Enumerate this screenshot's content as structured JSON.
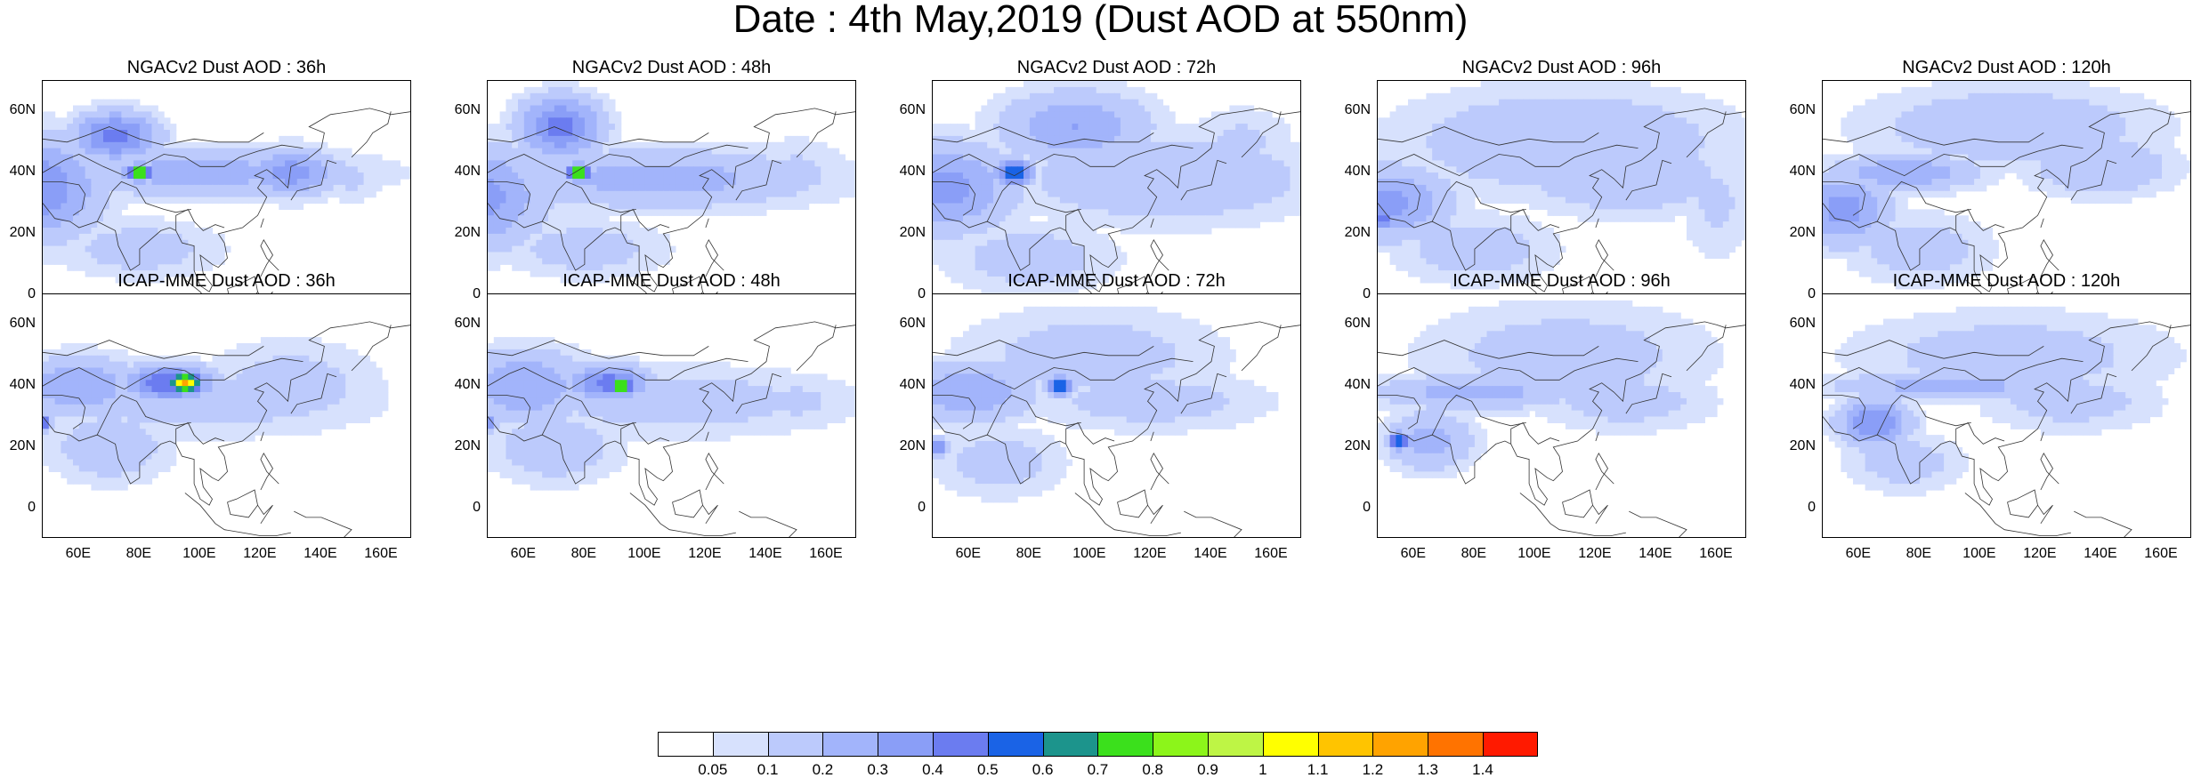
{
  "title": "Date : 4th May,2019 (Dust AOD at 550nm)",
  "x_ticks": [
    "60E",
    "80E",
    "100E",
    "120E",
    "140E",
    "160E"
  ],
  "y_ticks": [
    "60N",
    "40N",
    "20N",
    "0"
  ],
  "lon_range": [
    48,
    170
  ],
  "lat_range": [
    -10,
    70
  ],
  "panels": [
    {
      "title": "NGACv2 Dust AOD : 36h",
      "model": "NGACv2",
      "lead": "36h",
      "blobs": [
        [
          45,
          35,
          22,
          17,
          0.4
        ],
        [
          72,
          52,
          14,
          8,
          0.45
        ],
        [
          80,
          40,
          4,
          3,
          0.85
        ],
        [
          100,
          40,
          55,
          8,
          0.25
        ],
        [
          80,
          15,
          28,
          10,
          0.15
        ],
        [
          130,
          40,
          15,
          8,
          0.35
        ],
        [
          150,
          38,
          12,
          8,
          0.12
        ]
      ]
    },
    {
      "title": "NGACv2 Dust AOD : 48h",
      "model": "NGACv2",
      "lead": "48h",
      "blobs": [
        [
          45,
          32,
          22,
          17,
          0.35
        ],
        [
          72,
          55,
          14,
          10,
          0.45
        ],
        [
          78,
          40,
          4,
          3,
          0.85
        ],
        [
          105,
          38,
          55,
          10,
          0.25
        ],
        [
          80,
          15,
          28,
          10,
          0.15
        ],
        [
          150,
          40,
          18,
          12,
          0.12
        ]
      ]
    },
    {
      "title": "NGACv2 Dust AOD : 72h",
      "model": "NGACv2",
      "lead": "72h",
      "blobs": [
        [
          50,
          35,
          25,
          15,
          0.35
        ],
        [
          75,
          40,
          6,
          4,
          0.6
        ],
        [
          95,
          55,
          25,
          12,
          0.3
        ],
        [
          125,
          38,
          50,
          15,
          0.2
        ],
        [
          80,
          12,
          30,
          12,
          0.15
        ],
        [
          150,
          50,
          18,
          12,
          0.12
        ]
      ]
    },
    {
      "title": "NGACv2 Dust AOD : 96h",
      "model": "NGACv2",
      "lead": "96h",
      "blobs": [
        [
          50,
          30,
          22,
          12,
          0.35
        ],
        [
          50,
          25,
          4,
          3,
          0.5
        ],
        [
          110,
          50,
          55,
          18,
          0.2
        ],
        [
          130,
          38,
          35,
          12,
          0.2
        ],
        [
          80,
          15,
          28,
          12,
          0.15
        ],
        [
          160,
          30,
          12,
          20,
          0.12
        ]
      ]
    },
    {
      "title": "NGACv2 Dust AOD : 120h",
      "model": "NGACv2",
      "lead": "120h",
      "blobs": [
        [
          55,
          28,
          15,
          12,
          0.35
        ],
        [
          75,
          40,
          25,
          6,
          0.3
        ],
        [
          110,
          55,
          50,
          14,
          0.18
        ],
        [
          140,
          42,
          25,
          10,
          0.2
        ],
        [
          80,
          15,
          25,
          12,
          0.15
        ]
      ]
    },
    {
      "title": "ICAP-MME Dust AOD : 36h",
      "model": "ICAP-MME",
      "lead": "36h",
      "blobs": [
        [
          95,
          41,
          5,
          3,
          1.2
        ],
        [
          90,
          41,
          15,
          6,
          0.5
        ],
        [
          60,
          40,
          20,
          10,
          0.3
        ],
        [
          100,
          35,
          60,
          12,
          0.15
        ],
        [
          130,
          40,
          30,
          15,
          0.15
        ],
        [
          70,
          20,
          20,
          12,
          0.18
        ],
        [
          48,
          28,
          3,
          3,
          0.5
        ]
      ]
    },
    {
      "title": "ICAP-MME Dust AOD : 48h",
      "model": "ICAP-MME",
      "lead": "48h",
      "blobs": [
        [
          92,
          40,
          4,
          3,
          0.85
        ],
        [
          88,
          41,
          14,
          6,
          0.45
        ],
        [
          60,
          40,
          22,
          12,
          0.3
        ],
        [
          110,
          35,
          60,
          12,
          0.15
        ],
        [
          150,
          35,
          20,
          10,
          0.12
        ],
        [
          70,
          20,
          22,
          12,
          0.18
        ],
        [
          48,
          28,
          3,
          3,
          0.45
        ]
      ]
    },
    {
      "title": "ICAP-MME Dust AOD : 72h",
      "model": "ICAP-MME",
      "lead": "72h",
      "blobs": [
        [
          90,
          40,
          4,
          3,
          0.65
        ],
        [
          60,
          38,
          22,
          10,
          0.3
        ],
        [
          100,
          50,
          45,
          16,
          0.15
        ],
        [
          120,
          35,
          40,
          10,
          0.15
        ],
        [
          70,
          15,
          22,
          12,
          0.15
        ],
        [
          50,
          20,
          3,
          3,
          0.4
        ]
      ]
    },
    {
      "title": "ICAP-MME Dust AOD : 96h",
      "model": "ICAP-MME",
      "lead": "96h",
      "blobs": [
        [
          80,
          38,
          35,
          6,
          0.25
        ],
        [
          55,
          22,
          4,
          3,
          0.6
        ],
        [
          65,
          22,
          15,
          10,
          0.25
        ],
        [
          110,
          50,
          50,
          18,
          0.15
        ],
        [
          130,
          35,
          30,
          10,
          0.15
        ]
      ]
    },
    {
      "title": "ICAP-MME Dust AOD : 120h",
      "model": "ICAP-MME",
      "lead": "120h",
      "blobs": [
        [
          65,
          28,
          12,
          8,
          0.4
        ],
        [
          90,
          40,
          40,
          5,
          0.25
        ],
        [
          110,
          50,
          55,
          15,
          0.15
        ],
        [
          130,
          35,
          30,
          10,
          0.15
        ],
        [
          75,
          15,
          20,
          10,
          0.15
        ]
      ]
    }
  ],
  "colorbar": {
    "labels": [
      "0.05",
      "0.1",
      "0.2",
      "0.3",
      "0.4",
      "0.5",
      "0.6",
      "0.7",
      "0.8",
      "0.9",
      "1",
      "1.1",
      "1.2",
      "1.3",
      "1.4"
    ],
    "colors": [
      "#ffffff",
      "#d7e1fd",
      "#bccafc",
      "#a2b4fb",
      "#8a9ef7",
      "#6b7cf0",
      "#1a63e6",
      "#1c948c",
      "#3be01c",
      "#8cf51a",
      "#bef545",
      "#ffff00",
      "#ffc400",
      "#ffa300",
      "#ff7300",
      "#ff1a00"
    ]
  }
}
